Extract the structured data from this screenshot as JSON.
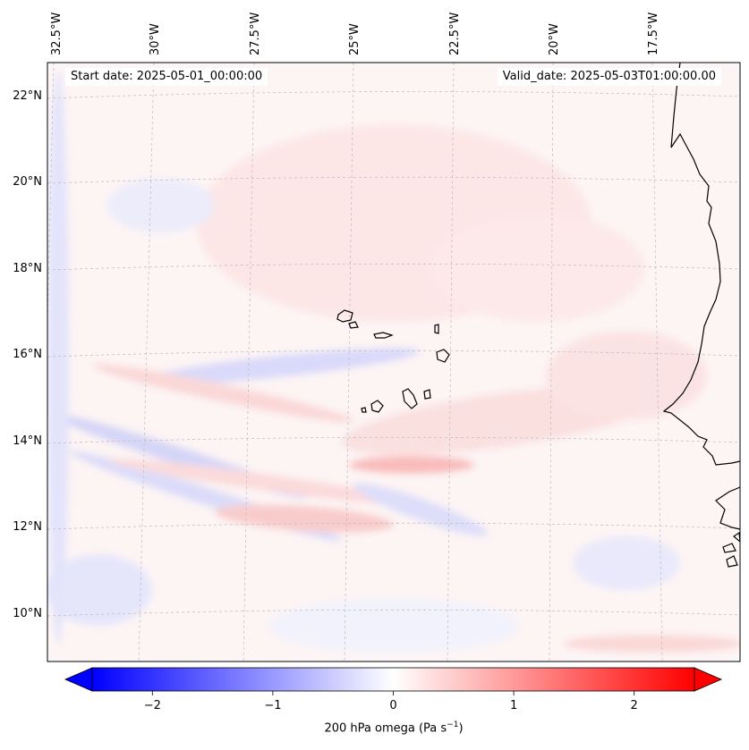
{
  "map": {
    "start_date_label": "Start date: 2025-05-01_00:00:00",
    "valid_date_label": "Valid_date: 2025-05-03T01:00:00.00",
    "lon_labels": [
      "32.5°W",
      "30°W",
      "27.5°W",
      "25°W",
      "22.5°W",
      "20°W",
      "17.5°W"
    ],
    "lat_labels": [
      "22°N",
      "20°N",
      "18°N",
      "16°N",
      "14°N",
      "12°N",
      "10°N"
    ],
    "coastline_color": "#000000",
    "gridline_color": "#bbbbbb"
  },
  "colorbar": {
    "title_main": "200 hPa omega (Pa s",
    "title_exp": "−1",
    "title_end": ")",
    "ticks": [
      "−2",
      "−1",
      "0",
      "1",
      "2"
    ],
    "tick_values": [
      -2,
      -1,
      0,
      1,
      2
    ],
    "vmin": -2.5,
    "vmax": 2.5,
    "cmap": "bwr",
    "color_min": "#0000ff",
    "color_mid": "#ffffff",
    "color_max": "#ff0000"
  }
}
